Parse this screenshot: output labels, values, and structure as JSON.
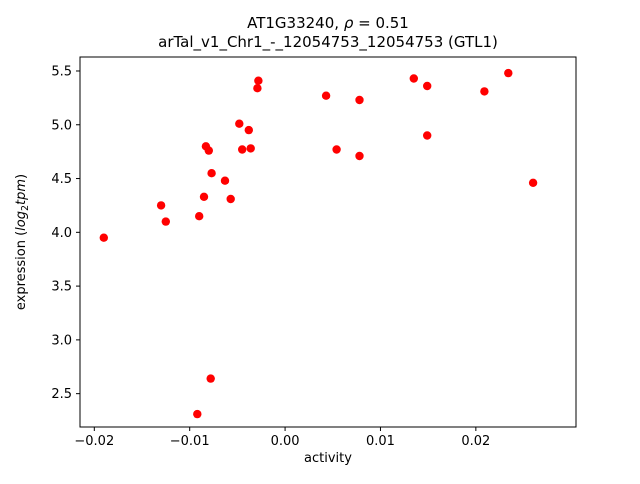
{
  "chart_data": {
    "type": "scatter",
    "title_gene": "AT1G33240, ",
    "title_rho": "ρ",
    "title_corr": " = 0.51",
    "title_line2": "arTal_v1_Chr1_-_12054753_12054753 (GTL1)",
    "xlabel": "activity",
    "ylabel_prefix": "expression (",
    "ylabel_log": "log",
    "ylabel_sub": "2",
    "ylabel_tpm": "tpm",
    "ylabel_suffix": ")",
    "marker_color": "#ff0000",
    "axis_color": "#000000",
    "xlim": [
      -0.0215,
      0.0305
    ],
    "ylim": [
      2.19,
      5.63
    ],
    "xticks": [
      {
        "v": -0.02,
        "label": "−0.02"
      },
      {
        "v": -0.01,
        "label": "−0.01"
      },
      {
        "v": 0.0,
        "label": "0.00"
      },
      {
        "v": 0.01,
        "label": "0.01"
      },
      {
        "v": 0.02,
        "label": "0.02"
      }
    ],
    "yticks": [
      {
        "v": 2.5,
        "label": "2.5"
      },
      {
        "v": 3.0,
        "label": "3.0"
      },
      {
        "v": 3.5,
        "label": "3.5"
      },
      {
        "v": 4.0,
        "label": "4.0"
      },
      {
        "v": 4.5,
        "label": "4.5"
      },
      {
        "v": 5.0,
        "label": "5.0"
      },
      {
        "v": 5.5,
        "label": "5.5"
      }
    ],
    "points": [
      [
        -0.019,
        3.95
      ],
      [
        -0.013,
        4.25
      ],
      [
        -0.0125,
        4.1
      ],
      [
        -0.009,
        4.15
      ],
      [
        -0.0085,
        4.33
      ],
      [
        -0.0083,
        4.8
      ],
      [
        -0.008,
        4.76
      ],
      [
        -0.0077,
        4.55
      ],
      [
        -0.0092,
        2.31
      ],
      [
        -0.0078,
        2.64
      ],
      [
        -0.0063,
        4.48
      ],
      [
        -0.0057,
        4.31
      ],
      [
        -0.0048,
        5.01
      ],
      [
        -0.0045,
        4.77
      ],
      [
        -0.0038,
        4.95
      ],
      [
        -0.0036,
        4.78
      ],
      [
        -0.0029,
        5.34
      ],
      [
        -0.0028,
        5.41
      ],
      [
        0.0043,
        5.27
      ],
      [
        0.0054,
        4.77
      ],
      [
        0.0078,
        5.23
      ],
      [
        0.0078,
        4.71
      ],
      [
        0.0135,
        5.43
      ],
      [
        0.0149,
        5.36
      ],
      [
        0.0149,
        4.9
      ],
      [
        0.0209,
        5.31
      ],
      [
        0.0234,
        5.48
      ],
      [
        0.026,
        4.46
      ]
    ]
  }
}
